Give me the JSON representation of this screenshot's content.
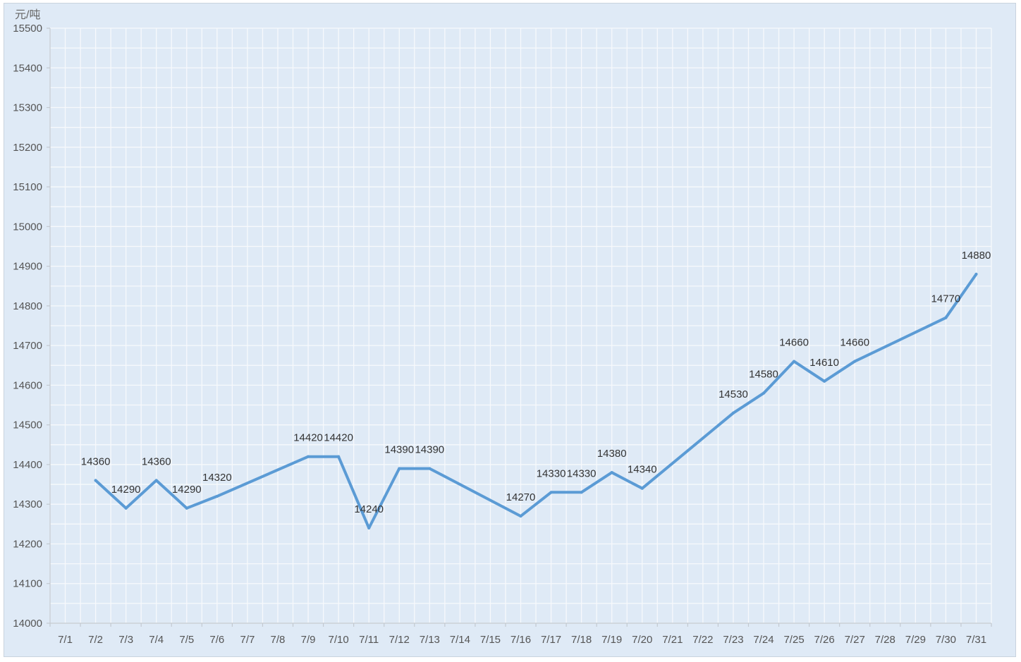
{
  "chart_data": {
    "type": "line",
    "ylabel": "元/吨",
    "ylim": [
      14000,
      15500
    ],
    "y_ticks": [
      14000,
      14100,
      14200,
      14300,
      14400,
      14500,
      14600,
      14700,
      14800,
      14900,
      15000,
      15100,
      15200,
      15300,
      15400,
      15500
    ],
    "categories": [
      "7/1",
      "7/2",
      "7/3",
      "7/4",
      "7/5",
      "7/6",
      "7/7",
      "7/8",
      "7/9",
      "7/10",
      "7/11",
      "7/12",
      "7/13",
      "7/14",
      "7/15",
      "7/16",
      "7/17",
      "7/18",
      "7/19",
      "7/20",
      "7/21",
      "7/22",
      "7/23",
      "7/24",
      "7/25",
      "7/26",
      "7/27",
      "7/28",
      "7/29",
      "7/30",
      "7/31"
    ],
    "grid": true,
    "series": [
      {
        "color": "#5b9bd5",
        "points": [
          {
            "x": "7/2",
            "y": 14360,
            "label": "14360"
          },
          {
            "x": "7/3",
            "y": 14290,
            "label": "14290"
          },
          {
            "x": "7/4",
            "y": 14360,
            "label": "14360"
          },
          {
            "x": "7/5",
            "y": 14290,
            "label": "14290"
          },
          {
            "x": "7/6",
            "y": 14320,
            "label": "14320"
          },
          {
            "x": "7/9",
            "y": 14420,
            "label": "14420"
          },
          {
            "x": "7/10",
            "y": 14420,
            "label": "14420"
          },
          {
            "x": "7/11",
            "y": 14240,
            "label": "14240"
          },
          {
            "x": "7/12",
            "y": 14390,
            "label": "14390"
          },
          {
            "x": "7/13",
            "y": 14390,
            "label": "14390"
          },
          {
            "x": "7/16",
            "y": 14270,
            "label": "14270"
          },
          {
            "x": "7/17",
            "y": 14330,
            "label": "14330"
          },
          {
            "x": "7/18",
            "y": 14330,
            "label": "14330"
          },
          {
            "x": "7/19",
            "y": 14380,
            "label": "14380"
          },
          {
            "x": "7/20",
            "y": 14340,
            "label": "14340"
          },
          {
            "x": "7/23",
            "y": 14530,
            "label": "14530"
          },
          {
            "x": "7/24",
            "y": 14580,
            "label": "14580"
          },
          {
            "x": "7/25",
            "y": 14660,
            "label": "14660"
          },
          {
            "x": "7/26",
            "y": 14610,
            "label": "14610"
          },
          {
            "x": "7/27",
            "y": 14660,
            "label": "14660"
          },
          {
            "x": "7/30",
            "y": 14770,
            "label": "14770"
          },
          {
            "x": "7/31",
            "y": 14880,
            "label": "14880"
          }
        ]
      }
    ]
  }
}
